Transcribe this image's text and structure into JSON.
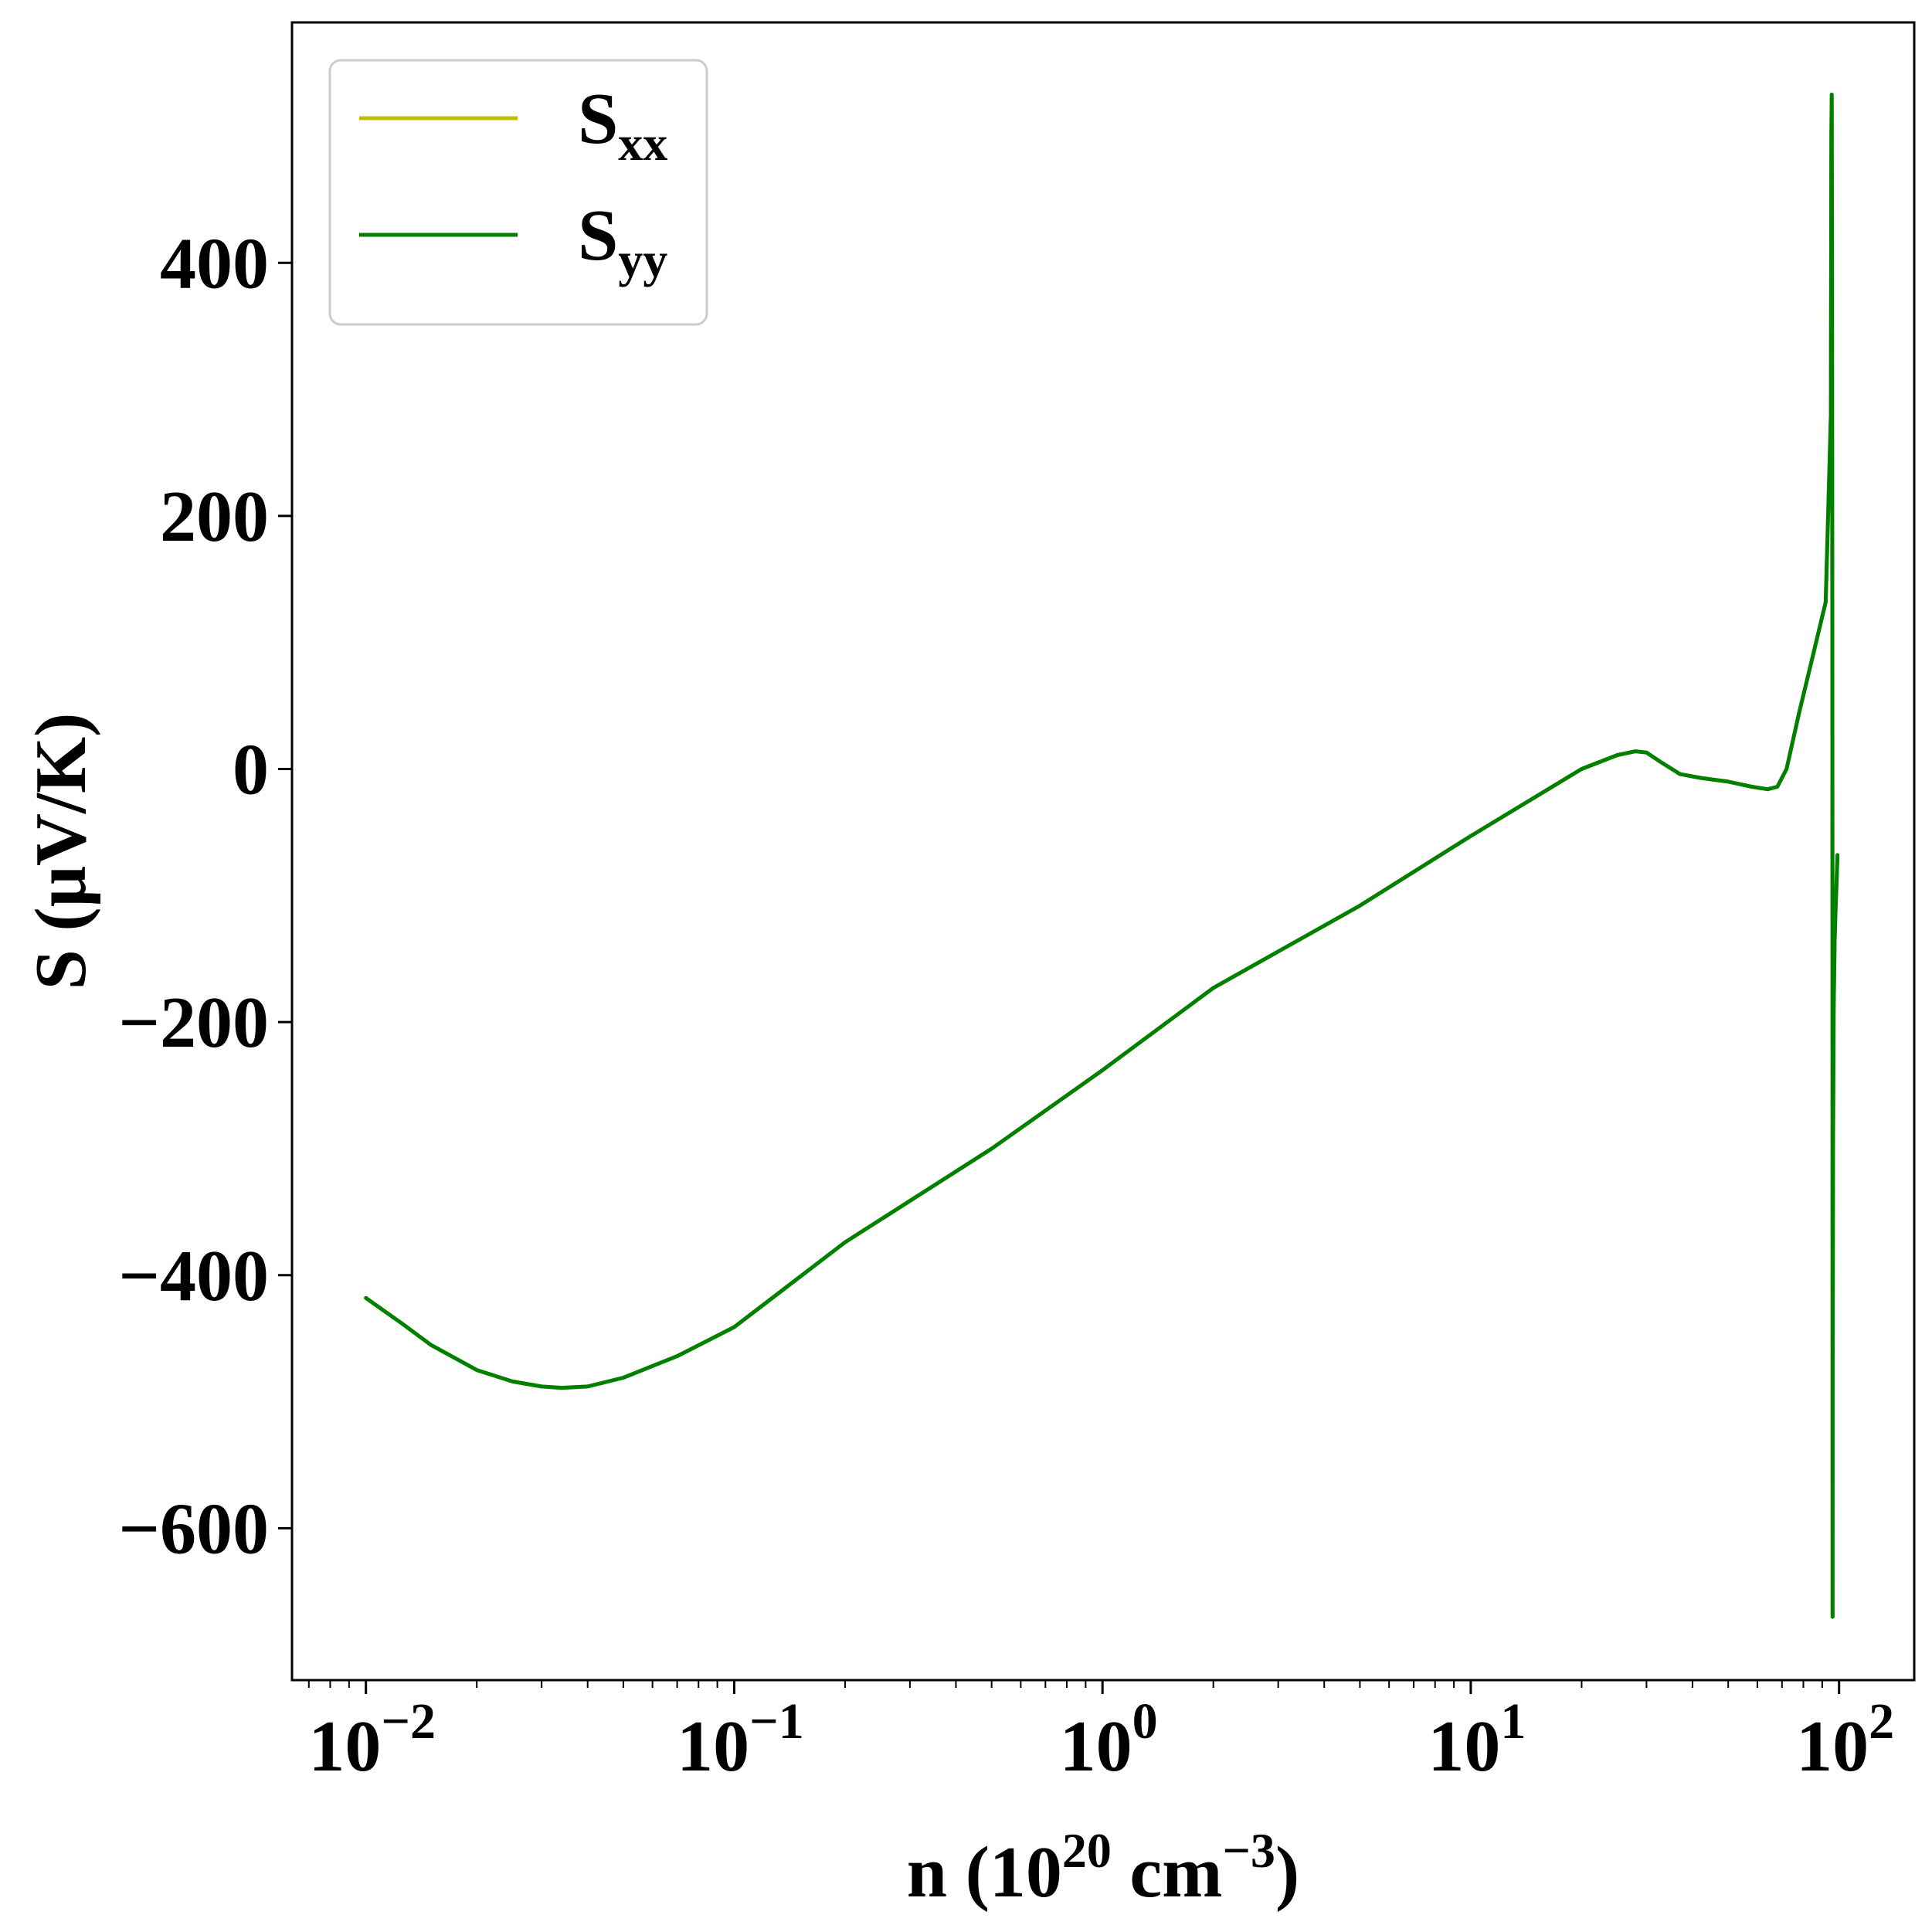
{
  "chart_data": {
    "type": "line",
    "x_scale": "log",
    "xlim": [
      0.0063,
      160
    ],
    "ylim": [
      -720,
      590
    ],
    "xlabel": {
      "base": "n (10",
      "sup1": "20",
      "mid": " cm",
      "sup2": "−3",
      "end": ")"
    },
    "ylabel": "S (μV/K)",
    "y_ticks": [
      -600,
      -400,
      -200,
      0,
      200,
      400
    ],
    "y_tick_labels": [
      "−600",
      "−400",
      "−200",
      "0",
      "200",
      "400"
    ],
    "x_ticks": [
      {
        "value": 0.01,
        "base": "10",
        "exp": "−2"
      },
      {
        "value": 0.1,
        "base": "10",
        "exp": "−1"
      },
      {
        "value": 1,
        "base": "10",
        "exp": "0"
      },
      {
        "value": 10,
        "base": "10",
        "exp": "1"
      },
      {
        "value": 100,
        "base": "10",
        "exp": "2"
      }
    ],
    "grid": false,
    "legend": {
      "placement": "top-left",
      "entries": [
        {
          "main": "S",
          "sub": "xx",
          "color": "#bfbf00"
        },
        {
          "main": "S",
          "sub": "yy",
          "color": "#008000"
        }
      ]
    },
    "series": [
      {
        "name": "Sxx",
        "color": "#bfbf00",
        "x": [
          0.01,
          0.0125,
          0.015,
          0.02,
          0.025,
          0.03,
          0.034,
          0.04,
          0.05,
          0.07,
          0.1,
          0.2,
          0.5,
          1,
          2,
          5,
          10,
          20,
          25,
          28,
          30,
          33,
          37,
          42,
          50,
          58,
          64,
          68,
          72,
          78,
          85,
          92,
          95,
          95.3,
          95.5,
          95.7,
          95.9,
          96.0,
          96.05,
          96.1,
          96.3,
          96.7,
          97.3,
          98.0,
          98.5,
          99.0
        ],
        "y": [
          -418,
          -438,
          -455,
          -475,
          -484,
          -488,
          -489,
          -488,
          -481,
          -464,
          -441,
          -374,
          -300,
          -238,
          -173,
          -108,
          -53,
          0,
          11,
          14,
          13,
          5,
          -4,
          -7,
          -10,
          -14,
          -16,
          -14,
          0,
          45,
          90,
          132,
          280,
          500,
          533,
          400,
          100,
          -200,
          -670,
          -500,
          -300,
          -190,
          -135,
          -105,
          -88,
          -68
        ]
      },
      {
        "name": "Syy",
        "color": "#008000",
        "x": [
          0.01,
          0.0125,
          0.015,
          0.02,
          0.025,
          0.03,
          0.034,
          0.04,
          0.05,
          0.07,
          0.1,
          0.2,
          0.5,
          1,
          2,
          5,
          10,
          20,
          25,
          28,
          30,
          33,
          37,
          42,
          50,
          58,
          64,
          68,
          72,
          78,
          85,
          92,
          95,
          95.3,
          95.5,
          95.7,
          95.9,
          96.0,
          96.05,
          96.1,
          96.3,
          96.7,
          97.3,
          98.0,
          98.5,
          99.0
        ],
        "y": [
          -418,
          -438,
          -455,
          -475,
          -484,
          -488,
          -489,
          -488,
          -481,
          -464,
          -441,
          -374,
          -300,
          -238,
          -173,
          -108,
          -53,
          0,
          11,
          14,
          13,
          5,
          -4,
          -7,
          -10,
          -14,
          -16,
          -14,
          0,
          45,
          90,
          132,
          280,
          500,
          533,
          400,
          100,
          -200,
          -670,
          -500,
          -300,
          -190,
          -135,
          -105,
          -88,
          -68
        ]
      }
    ]
  }
}
